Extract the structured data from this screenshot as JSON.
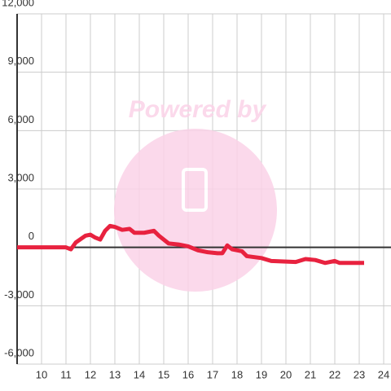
{
  "chart_data": {
    "type": "line",
    "watermark": "Powered by",
    "x": [
      9.0,
      11.0,
      11.2,
      11.4,
      11.8,
      12.0,
      12.2,
      12.4,
      12.6,
      12.8,
      13.0,
      13.3,
      13.6,
      13.8,
      14.2,
      14.6,
      14.8,
      15.2,
      15.6,
      16.0,
      16.4,
      16.8,
      17.2,
      17.4,
      17.6,
      17.8,
      18.2,
      18.4,
      19.0,
      19.4,
      20.4,
      20.8,
      21.2,
      21.6,
      22.0,
      22.2,
      23.2
    ],
    "series": [
      {
        "color": "#e8223f",
        "values": [
          0,
          0,
          -100,
          250,
          600,
          650,
          500,
          400,
          850,
          1100,
          1050,
          900,
          950,
          750,
          750,
          850,
          600,
          200,
          150,
          50,
          -150,
          -250,
          -300,
          -300,
          100,
          -100,
          -200,
          -450,
          -550,
          -700,
          -750,
          -600,
          -650,
          -800,
          -700,
          -800,
          -800
        ]
      }
    ],
    "xlim": [
      9,
      24.3
    ],
    "xticks": [
      10,
      11,
      12,
      13,
      14,
      15,
      16,
      17,
      18,
      19,
      20,
      21,
      22,
      23,
      24
    ],
    "ylim": [
      -6000,
      12000
    ],
    "yticks": [
      {
        "value": -6000,
        "label": "-6,000"
      },
      {
        "value": -3000,
        "label": "-3,000"
      },
      0,
      {
        "value": 3000,
        "label": "3,000"
      },
      {
        "value": 6000,
        "label": "6,000"
      },
      {
        "value": 9000,
        "label": "9,000"
      },
      {
        "value": 12000,
        "label": "12,000"
      }
    ],
    "grid": true
  }
}
